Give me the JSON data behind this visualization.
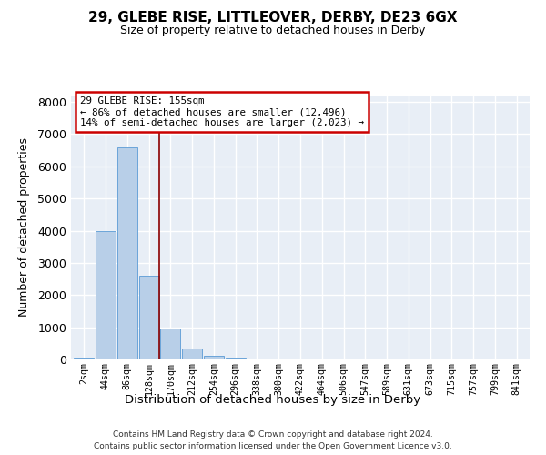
{
  "title1": "29, GLEBE RISE, LITTLEOVER, DERBY, DE23 6GX",
  "title2": "Size of property relative to detached houses in Derby",
  "xlabel": "Distribution of detached houses by size in Derby",
  "ylabel": "Number of detached properties",
  "bar_labels": [
    "2sqm",
    "44sqm",
    "86sqm",
    "128sqm",
    "170sqm",
    "212sqm",
    "254sqm",
    "296sqm",
    "338sqm",
    "380sqm",
    "422sqm",
    "464sqm",
    "506sqm",
    "547sqm",
    "589sqm",
    "631sqm",
    "673sqm",
    "715sqm",
    "757sqm",
    "799sqm",
    "841sqm"
  ],
  "bar_values": [
    60,
    4000,
    6600,
    2600,
    950,
    330,
    100,
    60,
    0,
    0,
    0,
    0,
    0,
    0,
    0,
    0,
    0,
    0,
    0,
    0,
    0
  ],
  "bar_color": "#b8cfe8",
  "bar_edge_color": "#5b9bd5",
  "bg_color": "#e8eef6",
  "grid_color": "#ffffff",
  "ylim": [
    0,
    8200
  ],
  "red_line_x": 3.5,
  "red_line_color": "#8b0000",
  "annotation_line1": "29 GLEBE RISE: 155sqm",
  "annotation_line2": "← 86% of detached houses are smaller (12,496)",
  "annotation_line3": "14% of semi-detached houses are larger (2,023) →",
  "footnote1": "Contains HM Land Registry data © Crown copyright and database right 2024.",
  "footnote2": "Contains public sector information licensed under the Open Government Licence v3.0."
}
